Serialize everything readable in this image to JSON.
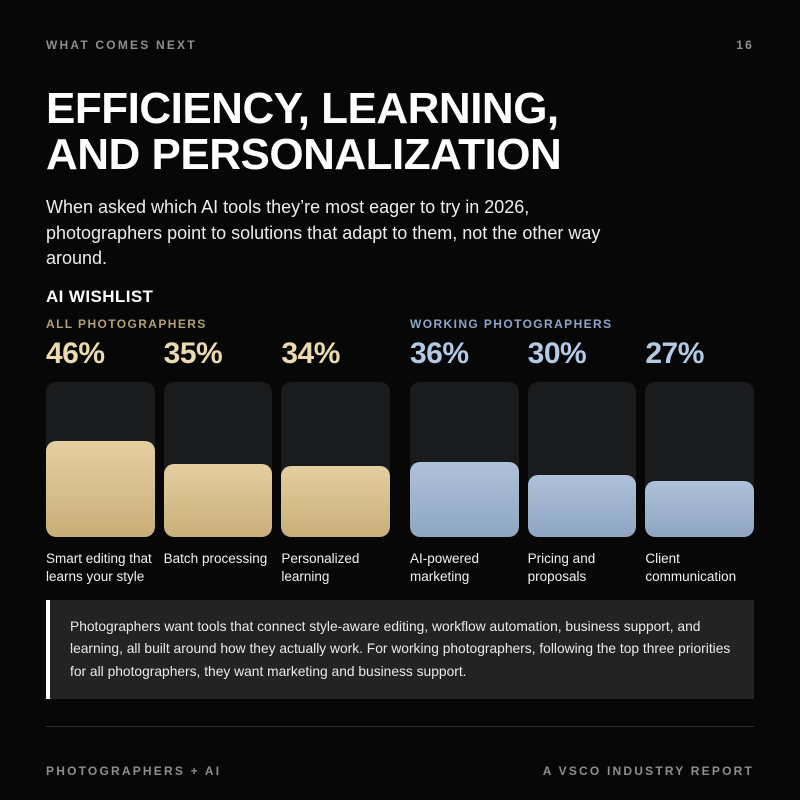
{
  "header": {
    "eyebrow": "WHAT COMES NEXT",
    "page_number": "16"
  },
  "title": {
    "line1": "EFFICIENCY, LEARNING,",
    "line2": "AND PERSONALIZATION"
  },
  "intro": "When asked which AI tools they’re most eager to try in 2026, photographers point to solutions that adapt to them, not the other way around.",
  "chart_data": {
    "type": "bar",
    "title": "AI WISHLIST",
    "unit": "%",
    "ylim": [
      0,
      75
    ],
    "grid": false,
    "legend_position": "above-columns",
    "groups": [
      {
        "name": "ALL PHOTOGRAPHERS",
        "label_color": "#b3a077",
        "pct_color": "#ebdaad",
        "bar_top": "#e5cfa1",
        "bar_bottom": "#c9ae78"
      },
      {
        "name": "WORKING PHOTOGRAPHERS",
        "label_color": "#8ba6c7",
        "pct_color": "#b3cae4",
        "bar_top": "#aec2db",
        "bar_bottom": "#8fa5c1"
      }
    ],
    "bars": [
      {
        "label": "Smart editing that learns your style",
        "value": 46,
        "pct_label": "46%",
        "group": 0
      },
      {
        "label": "Batch processing",
        "value": 35,
        "pct_label": "35%",
        "group": 0
      },
      {
        "label": "Personalized learning",
        "value": 34,
        "pct_label": "34%",
        "group": 0
      },
      {
        "label": "AI-powered marketing",
        "value": 36,
        "pct_label": "36%",
        "group": 1
      },
      {
        "label": "Pricing and proposals",
        "value": 30,
        "pct_label": "30%",
        "group": 1
      },
      {
        "label": "Client communication",
        "value": 27,
        "pct_label": "27%",
        "group": 1
      }
    ]
  },
  "callout": "Photographers want tools that connect style-aware editing, workflow automation, business support, and learning, all built around how they actually work. For working photographers, following the top three priorities for all photographers, they want marketing and business support.",
  "footer": {
    "left": "PHOTOGRAPHERS + AI",
    "right": "A VSCO INDUSTRY REPORT"
  }
}
